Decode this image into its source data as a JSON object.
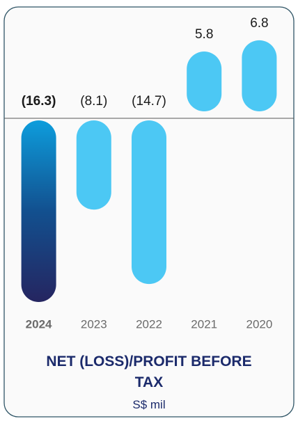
{
  "chart_data": {
    "type": "bar",
    "title": "NET (LOSS)/PROFIT BEFORE TAX",
    "subtitle": "S$ mil",
    "categories": [
      "2024",
      "2023",
      "2022",
      "2021",
      "2020"
    ],
    "values": [
      -16.3,
      -8.1,
      -14.7,
      5.8,
      6.8
    ],
    "value_labels": [
      "(16.3)",
      "(8.1)",
      "(14.7)",
      "5.8",
      "6.8"
    ],
    "colors": [
      "#1565a8",
      "#4cc8f4",
      "#4cc8f4",
      "#4cc8f4",
      "#4cc8f4"
    ]
  }
}
